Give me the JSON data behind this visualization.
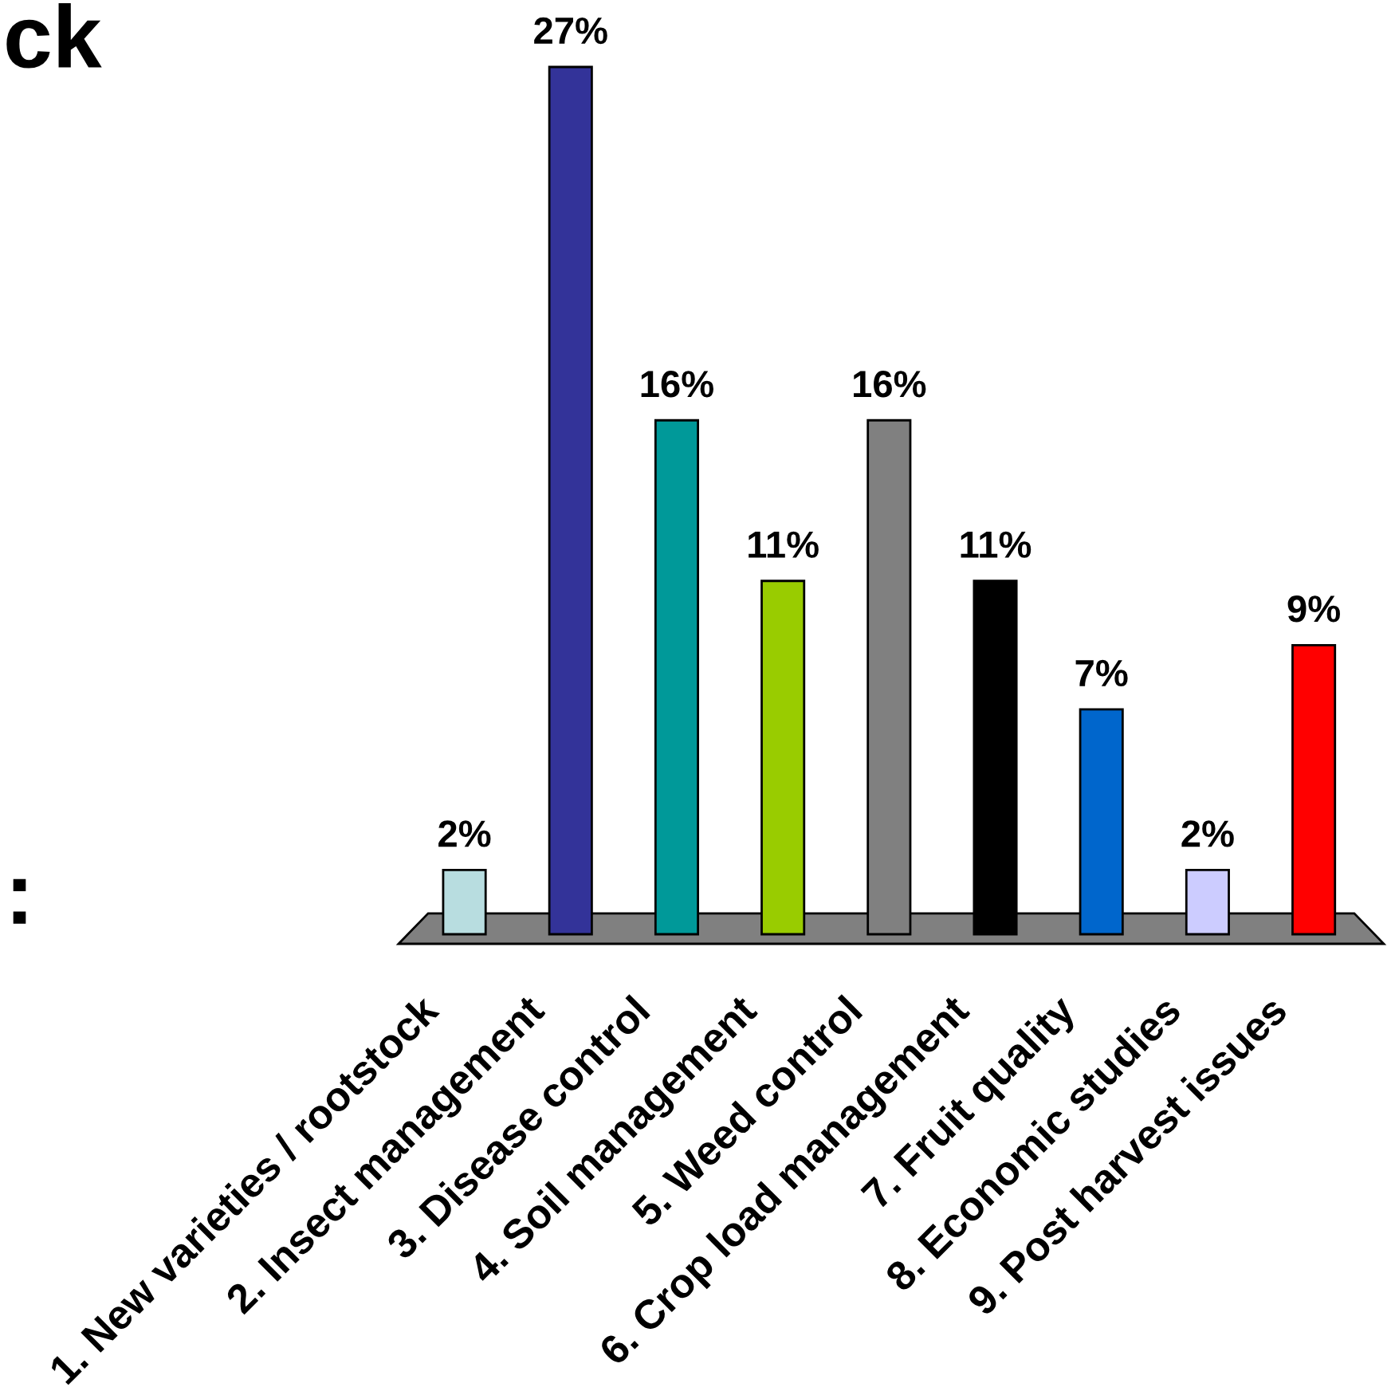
{
  "chart_data": {
    "type": "bar",
    "title": "ck",
    "annotations": [
      ":"
    ],
    "categories": [
      "1. New varieties / rootstock",
      "2. Insect management",
      "3. Disease control",
      "4. Soil management",
      "5. Weed control",
      "6. Crop load management",
      "7. Fruit quality",
      "8. Economic studies",
      "9. Post harvest issues"
    ],
    "values": [
      2,
      27,
      16,
      11,
      16,
      11,
      7,
      2,
      9
    ],
    "value_labels": [
      "2%",
      "27%",
      "16%",
      "11%",
      "16%",
      "11%",
      "7%",
      "2%",
      "9%"
    ],
    "colors": [
      "#b8dde0",
      "#333399",
      "#009999",
      "#99cc00",
      "#808080",
      "#000000",
      "#0066cc",
      "#ccccff",
      "#ff0000"
    ]
  }
}
